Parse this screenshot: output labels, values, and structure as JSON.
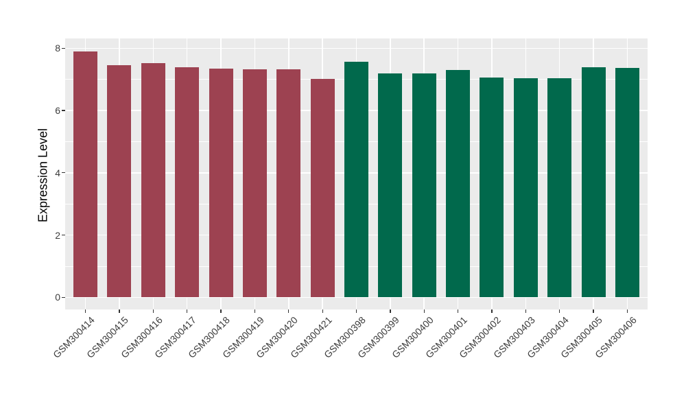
{
  "chart_data": {
    "type": "bar",
    "title": "",
    "xlabel": "",
    "ylabel": "Expression Level",
    "categories": [
      "GSM300414",
      "GSM300415",
      "GSM300416",
      "GSM300417",
      "GSM300418",
      "GSM300419",
      "GSM300420",
      "GSM300421",
      "GSM300398",
      "GSM300399",
      "GSM300400",
      "GSM300401",
      "GSM300402",
      "GSM300403",
      "GSM300404",
      "GSM300405",
      "GSM300406"
    ],
    "values": [
      7.9,
      7.45,
      7.53,
      7.39,
      7.34,
      7.33,
      7.32,
      7.02,
      7.57,
      7.19,
      7.19,
      7.3,
      7.06,
      7.04,
      7.03,
      7.38,
      7.37
    ],
    "bar_colors": [
      "#9d4251",
      "#9d4251",
      "#9d4251",
      "#9d4251",
      "#9d4251",
      "#9d4251",
      "#9d4251",
      "#9d4251",
      "#01694c",
      "#01694c",
      "#01694c",
      "#01694c",
      "#01694c",
      "#01694c",
      "#01694c",
      "#01694c",
      "#01694c"
    ],
    "groups": [
      {
        "name": "GSM300414-GSM300421",
        "color": "#9d4251",
        "count": 8
      },
      {
        "name": "GSM300398-GSM300406",
        "color": "#01694c",
        "count": 9
      }
    ],
    "ylim": [
      0,
      8
    ],
    "yticks": [
      0,
      2,
      4,
      6,
      8
    ],
    "ytick_labels": [
      "0",
      "2",
      "4",
      "6",
      "8"
    ],
    "yticks_minor": [
      1,
      3,
      5,
      7
    ],
    "grid": "horizontal major+minor, vertical major at category centers",
    "legend_position": "none",
    "x_label_rotation_deg": 45
  },
  "style": {
    "figure_background": "#ffffff",
    "panel_background": "#ebebeb",
    "grid_color": "#ffffff",
    "axis_text_color": "#3c3c3c",
    "axis_title_color": "#000000",
    "tick_mark_color": "#333333"
  }
}
